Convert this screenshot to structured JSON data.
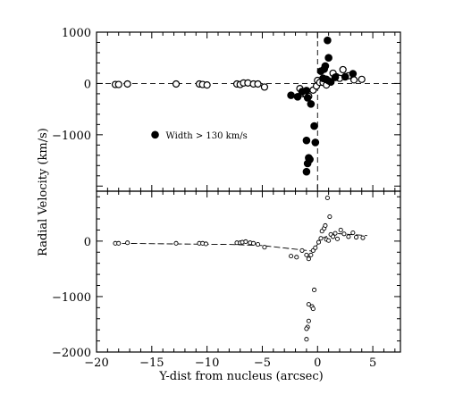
{
  "chart_data": [
    {
      "type": "scatter",
      "panel": "top",
      "xlabel": "Y-dist from nucleus (arcsec)",
      "ylabel": "Radial Velocity (km/s)",
      "xlim": [
        -20,
        7.5
      ],
      "ylim": [
        -2100,
        1000
      ],
      "x_ticks": [
        -20,
        -15,
        -10,
        -5,
        0,
        5
      ],
      "y_ticks": [
        -1000,
        0,
        1000
      ],
      "y_tick_labels": [
        "−1000",
        "0",
        "1000"
      ],
      "reference_lines": {
        "horizontal": 0,
        "vertical": 0
      },
      "legend": {
        "marker": "filled",
        "text": "Width > 130 km/s",
        "position": "middle-left"
      },
      "series": [
        {
          "marker": "open",
          "points": [
            [
              -18.3,
              -20
            ],
            [
              -18.0,
              -20
            ],
            [
              -17.2,
              -10
            ],
            [
              -12.8,
              -10
            ],
            [
              -10.7,
              -10
            ],
            [
              -10.4,
              -20
            ],
            [
              -10.0,
              -30
            ],
            [
              -7.3,
              -10
            ],
            [
              -7.0,
              -20
            ],
            [
              -6.7,
              10
            ],
            [
              -6.3,
              10
            ],
            [
              -5.8,
              -10
            ],
            [
              -5.4,
              -10
            ],
            [
              -4.8,
              -70
            ],
            [
              -1.6,
              -100
            ],
            [
              -1.3,
              -200
            ],
            [
              -1.1,
              -200
            ],
            [
              -0.8,
              -250
            ],
            [
              -0.4,
              -130
            ],
            [
              -0.1,
              -50
            ],
            [
              0.0,
              60
            ],
            [
              0.2,
              20
            ],
            [
              0.5,
              20
            ],
            [
              0.8,
              -30
            ],
            [
              1.0,
              50
            ],
            [
              1.4,
              200
            ],
            [
              1.7,
              130
            ],
            [
              2.0,
              100
            ],
            [
              2.3,
              270
            ],
            [
              2.8,
              150
            ],
            [
              3.3,
              70
            ],
            [
              4.0,
              80
            ]
          ]
        },
        {
          "marker": "filled",
          "points": [
            [
              -2.4,
              -230
            ],
            [
              -1.8,
              -260
            ],
            [
              -1.4,
              -160
            ],
            [
              -1.0,
              -140
            ],
            [
              -0.9,
              -280
            ],
            [
              -0.6,
              -400
            ],
            [
              -0.3,
              -830
            ],
            [
              -0.2,
              -1150
            ],
            [
              -1.0,
              -1110
            ],
            [
              -0.8,
              -1450
            ],
            [
              -0.7,
              -1480
            ],
            [
              -0.9,
              -1560
            ],
            [
              -1.0,
              -1720
            ],
            [
              0.3,
              240
            ],
            [
              0.6,
              280
            ],
            [
              0.7,
              340
            ],
            [
              0.9,
              840
            ],
            [
              1.0,
              500
            ],
            [
              0.5,
              100
            ],
            [
              0.8,
              80
            ],
            [
              1.2,
              30
            ],
            [
              1.6,
              120
            ],
            [
              2.5,
              130
            ],
            [
              3.2,
              190
            ]
          ]
        }
      ],
      "axis_label_text": "Radial Velocity (km/s)"
    },
    {
      "type": "scatter",
      "panel": "bottom",
      "xlim": [
        -20,
        7.5
      ],
      "ylim": [
        -2000,
        900
      ],
      "x_ticks": [
        -20,
        -15,
        -10,
        -5,
        0,
        5
      ],
      "x_tick_labels": [
        "−20",
        "−15",
        "−10",
        "−5",
        "0",
        "5"
      ],
      "y_ticks": [
        -2000,
        -1000,
        0
      ],
      "y_tick_labels": [
        "−2000",
        "−1000",
        "0"
      ],
      "fit_line": [
        [
          -18.5,
          -40
        ],
        [
          -13,
          -50
        ],
        [
          -8,
          -60
        ],
        [
          -5,
          -80
        ],
        [
          -0.5,
          -180
        ],
        [
          0.5,
          60
        ],
        [
          1.5,
          140
        ],
        [
          4.5,
          100
        ]
      ],
      "series": [
        {
          "marker": "small-open",
          "points": [
            [
              -18.3,
              -40
            ],
            [
              -18.0,
              -40
            ],
            [
              -17.2,
              -30
            ],
            [
              -12.8,
              -40
            ],
            [
              -10.7,
              -40
            ],
            [
              -10.4,
              -40
            ],
            [
              -10.1,
              -50
            ],
            [
              -7.3,
              -30
            ],
            [
              -7.0,
              -30
            ],
            [
              -6.8,
              -20
            ],
            [
              -6.5,
              -10
            ],
            [
              -6.1,
              -30
            ],
            [
              -5.8,
              -40
            ],
            [
              -5.4,
              -60
            ],
            [
              -4.8,
              -110
            ],
            [
              -2.4,
              -270
            ],
            [
              -1.9,
              -290
            ],
            [
              -1.4,
              -170
            ],
            [
              -1.0,
              -250
            ],
            [
              -0.8,
              -320
            ],
            [
              -0.6,
              -250
            ],
            [
              -0.4,
              -170
            ],
            [
              -0.2,
              -120
            ],
            [
              -0.3,
              -880
            ],
            [
              -0.5,
              -1180
            ],
            [
              -0.4,
              -1220
            ],
            [
              -0.8,
              -1140
            ],
            [
              -0.8,
              -1440
            ],
            [
              -0.9,
              -1550
            ],
            [
              -1.0,
              -1580
            ],
            [
              -1.0,
              -1770
            ],
            [
              0.1,
              -20
            ],
            [
              0.3,
              50
            ],
            [
              0.4,
              180
            ],
            [
              0.6,
              230
            ],
            [
              0.7,
              280
            ],
            [
              0.8,
              30
            ],
            [
              1.0,
              10
            ],
            [
              1.2,
              120
            ],
            [
              0.9,
              780
            ],
            [
              1.1,
              440
            ],
            [
              1.4,
              80
            ],
            [
              1.6,
              140
            ],
            [
              1.8,
              40
            ],
            [
              2.1,
              200
            ],
            [
              2.4,
              130
            ],
            [
              2.8,
              80
            ],
            [
              3.2,
              150
            ],
            [
              3.5,
              70
            ],
            [
              4.1,
              60
            ]
          ]
        }
      ]
    }
  ]
}
